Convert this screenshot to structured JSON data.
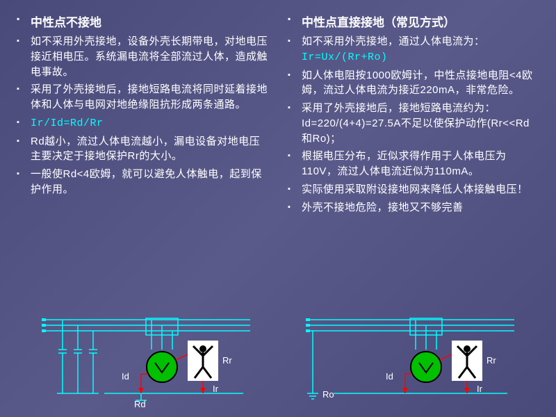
{
  "left": {
    "heading": "中性点不接地",
    "bullets": [
      {
        "text": "如不采用外壳接地，设备外壳长期带电，对地电压接近相电压。系统漏电流将全部流过人体，造成触电事故。"
      },
      {
        "text": "采用了外壳接地后，接地短路电流将同时延着接地体和人体与电网对地绝缘阻抗形成两条通路。"
      },
      {
        "text": "Ir/Id=Rd/Rr",
        "formula": true
      },
      {
        "text": "Rd越小，流过人体电流越小，漏电设备对地电压主要决定于接地保护Rr的大小。"
      },
      {
        "text": "一般使Rd<4欧姆，就可以避免人体触电，起到保护作用。"
      }
    ]
  },
  "right": {
    "heading": "中性点直接接地（常见方式）",
    "bullets": [
      {
        "text": "如不采用外壳接地，通过人体电流为：",
        "suffix_formula": "Ir=Ux/(Rr+Ro)"
      },
      {
        "text": "如人体电阻按1000欧姆计，中性点接地电阻<4欧姆，流过人体电流为接近220mA，非常危险。"
      },
      {
        "text": "采用了外壳接地后，接地短路电流约为：Id=220/(4+4)=27.5A不足以使保护动作(Rr<<Rd和Ro)；"
      },
      {
        "text": "根据电压分布，近似求得作用于人体电压为110V，流过人体电流近似为110mA。"
      },
      {
        "text": "实际使用采取附设接地网来降低人体接触电压！"
      },
      {
        "text": "外壳不接地危险，接地又不够完善"
      }
    ]
  },
  "diagram_labels": {
    "Id": "Id",
    "Ir": "Ir",
    "Rd": "Rd",
    "Rr": "Rr",
    "Ro": "Ro"
  },
  "colors": {
    "line": "#00ffff",
    "motor_fill": "#00c000",
    "motor_stroke": "#000000",
    "arrow": "#ff0000",
    "label": "#ffffff",
    "person_bg": "#ffffff",
    "person_fg": "#000000"
  }
}
